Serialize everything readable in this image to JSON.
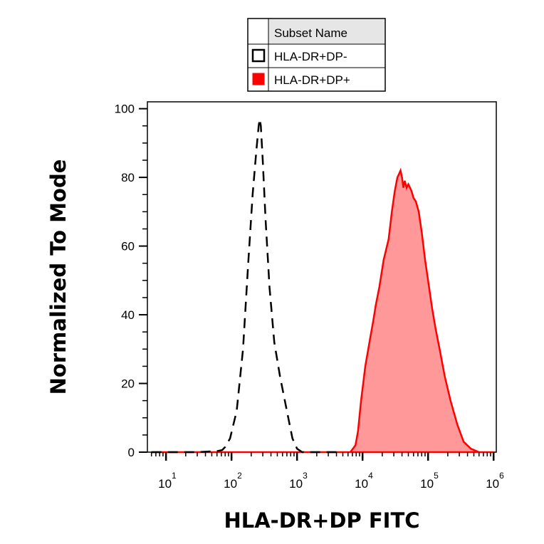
{
  "chart_data": {
    "type": "area",
    "xlabel": "HLA-DR+DP FITC",
    "ylabel": "Normalized To Mode",
    "x_scale": "log",
    "xlim": [
      5.2,
      1100000
    ],
    "ylim": [
      0,
      102
    ],
    "y_ticks": [
      "0",
      "20",
      "40",
      "60",
      "80",
      "100"
    ],
    "y_tick_values": [
      0,
      20,
      40,
      60,
      80,
      100
    ],
    "x_ticks": [
      {
        "value": 10,
        "base": "10",
        "exp": "1"
      },
      {
        "value": 100,
        "base": "10",
        "exp": "2"
      },
      {
        "value": 1000,
        "base": "10",
        "exp": "3"
      },
      {
        "value": 10000,
        "base": "10",
        "exp": "4"
      },
      {
        "value": 100000,
        "base": "10",
        "exp": "5"
      },
      {
        "value": 1000000,
        "base": "10",
        "exp": "6"
      }
    ],
    "legend": {
      "header": "Subset Name",
      "placement": "top-center",
      "entries": [
        {
          "label": "HLA-DR+DP-",
          "color": "#000000",
          "style": "dashed-outline"
        },
        {
          "label": "HLA-DR+DP+",
          "color": "#ff0000",
          "style": "filled"
        }
      ]
    },
    "series": [
      {
        "name": "HLA-DR+DP-",
        "color": "#000000",
        "style": "dashed",
        "x": [
          6,
          30,
          60,
          72,
          80,
          95,
          120,
          150,
          180,
          210,
          240,
          260,
          270,
          280,
          300,
          330,
          380,
          450,
          550,
          700,
          850,
          1000,
          1200,
          2000,
          5000
        ],
        "y": [
          0,
          0,
          0.3,
          0.6,
          1.5,
          4,
          12,
          30,
          55,
          75,
          88,
          95,
          97,
          95,
          85,
          68,
          48,
          32,
          22,
          12,
          4,
          1,
          0,
          0,
          0
        ]
      },
      {
        "name": "HLA-DR+DP+",
        "color": "#ff0000",
        "fill": "#ff9999",
        "style": "filled",
        "x": [
          6,
          5000,
          6500,
          7800,
          8500,
          9500,
          11000,
          13000,
          14500,
          16000,
          18000,
          21000,
          25000,
          28000,
          31000,
          34000,
          36000,
          38000,
          40000,
          42000,
          44000,
          47000,
          50000,
          53000,
          56000,
          60000,
          65000,
          72000,
          80000,
          90000,
          100000,
          115000,
          130000,
          150000,
          180000,
          220000,
          280000,
          350000,
          450000,
          600000,
          800000,
          1000000
        ],
        "y": [
          0,
          0,
          0,
          2,
          6,
          15,
          25,
          33,
          38,
          43,
          48,
          56,
          62,
          70,
          76,
          80,
          81,
          82,
          80,
          77,
          79,
          77,
          78,
          77,
          76,
          74,
          73,
          70,
          64,
          56,
          50,
          42,
          36,
          30,
          22,
          15,
          8,
          3,
          1,
          0,
          0,
          0
        ]
      }
    ]
  }
}
